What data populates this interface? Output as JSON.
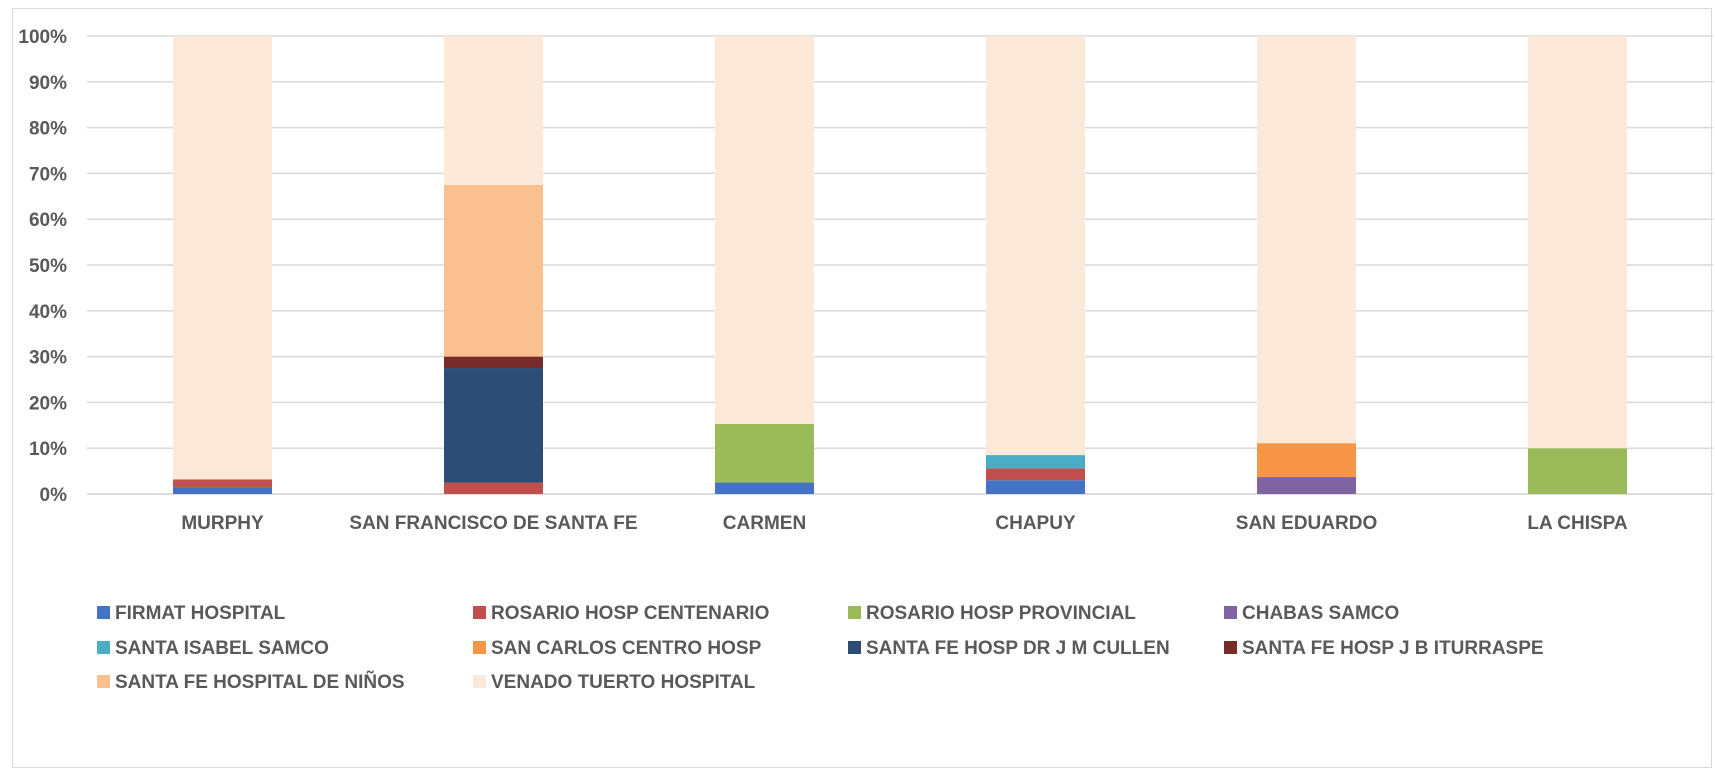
{
  "chart_data": {
    "type": "bar",
    "stacked": true,
    "percent": true,
    "title": "",
    "xlabel": "",
    "ylabel": "",
    "ylim": [
      0,
      100
    ],
    "yticks": [
      "0%",
      "10%",
      "20%",
      "30%",
      "40%",
      "50%",
      "60%",
      "70%",
      "80%",
      "90%",
      "100%"
    ],
    "grid": true,
    "legend_position": "bottom",
    "categories": [
      "MURPHY",
      "SAN FRANCISCO DE SANTA FE",
      "CARMEN",
      "CHAPUY",
      "SAN EDUARDO",
      "LA CHISPA"
    ],
    "series": [
      {
        "name": "FIRMAT  HOSPITAL",
        "color": "#4472C4",
        "values": [
          1.5,
          0,
          2.5,
          3,
          0,
          0
        ]
      },
      {
        "name": "ROSARIO  HOSP  CENTENARIO",
        "color": "#C0504D",
        "values": [
          1.7,
          2.5,
          0,
          2.6,
          0,
          0
        ]
      },
      {
        "name": "ROSARIO  HOSP  PROVINCIAL",
        "color": "#9BBB59",
        "values": [
          0,
          0,
          12.8,
          0,
          0,
          10
        ]
      },
      {
        "name": "CHABAS SAMCO",
        "color": "#8064A2",
        "values": [
          0,
          0,
          0,
          0,
          3.7,
          0
        ]
      },
      {
        "name": " SANTA ISABEL SAMCO",
        "color": "#4BACC6",
        "values": [
          0,
          0,
          0,
          2.9,
          0,
          0
        ]
      },
      {
        "name": "SAN CARLOS CENTRO  HOSP",
        "color": "#F79646",
        "values": [
          0,
          0,
          0,
          0,
          7.4,
          0
        ]
      },
      {
        "name": "SANTA FE  HOSP  DR  J M CULLEN",
        "color": "#2C4D75",
        "values": [
          0,
          25,
          0,
          0,
          0,
          0
        ]
      },
      {
        "name": "SANTA FE  HOSP  J B ITURRASPE",
        "color": "#772C2A",
        "values": [
          0,
          2.5,
          0,
          0,
          0,
          0
        ]
      },
      {
        "name": "SANTA FE  HOSPITAL DE NIÑOS",
        "color": "#FAC090",
        "values": [
          0,
          37.5,
          0,
          0,
          0,
          0
        ]
      },
      {
        "name": "VENADO TUERTO  HOSPITAL",
        "color": "#FDE9D9",
        "values": [
          96.8,
          32.5,
          84.7,
          91.5,
          88.9,
          90
        ]
      }
    ]
  }
}
